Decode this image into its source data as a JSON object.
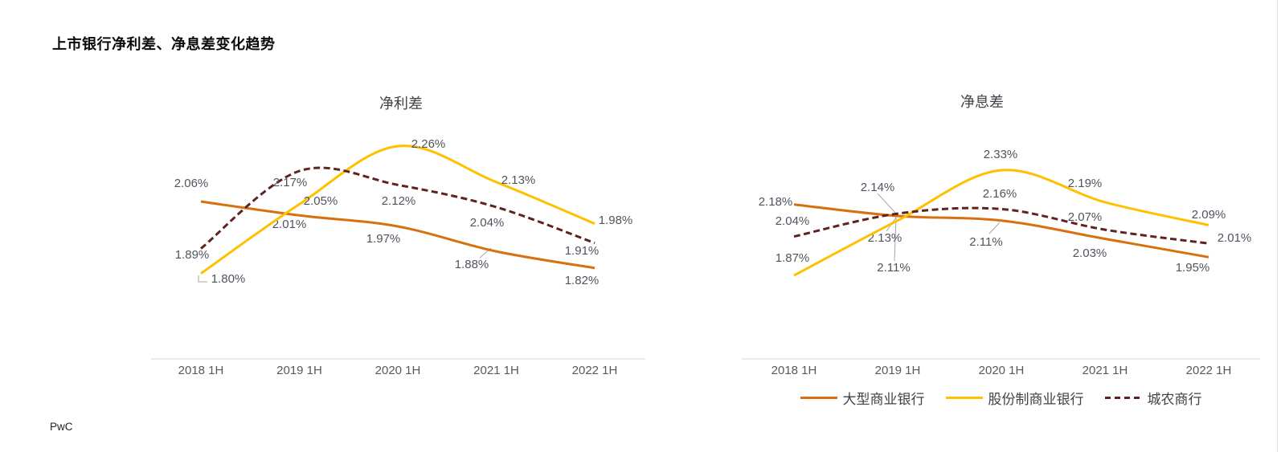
{
  "page": {
    "title": "上市银行净利差、净息差变化趋势",
    "footer": "PwC"
  },
  "legend": {
    "items": [
      {
        "label": "大型商业银行",
        "color": "#D9700F",
        "dashed": false
      },
      {
        "label": "股份制商业银行",
        "color": "#FFC000",
        "dashed": false
      },
      {
        "label": "城农商行",
        "color": "#5F2221",
        "dashed": true
      }
    ]
  },
  "chart_data": [
    {
      "type": "line",
      "title": "净利差",
      "categories": [
        "2018 1H",
        "2019 1H",
        "2020 1H",
        "2021 1H",
        "2022 1H"
      ],
      "ylim": [
        1.7,
        2.4
      ],
      "grid": false,
      "legend_position": "none",
      "series": [
        {
          "name": "大型商业银行",
          "color": "#D9700F",
          "style": "solid",
          "values": [
            2.06,
            2.01,
            1.97,
            1.88,
            1.82
          ],
          "labels": [
            "2.06%",
            "2.01%",
            "1.97%",
            "1.88%",
            "1.82%"
          ]
        },
        {
          "name": "股份制商业银行",
          "color": "#FFC000",
          "style": "solid",
          "values": [
            1.8,
            2.05,
            2.26,
            2.13,
            1.98
          ],
          "labels": [
            "1.80%",
            "2.05%",
            "2.26%",
            "2.13%",
            "1.98%"
          ]
        },
        {
          "name": "城农商行",
          "color": "#5F2221",
          "style": "dashed",
          "values": [
            1.89,
            2.17,
            2.12,
            2.04,
            1.91
          ],
          "labels": [
            "1.89%",
            "2.17%",
            "2.12%",
            "2.04%",
            "1.91%"
          ]
        }
      ]
    },
    {
      "type": "line",
      "title": "净息差",
      "categories": [
        "2018 1H",
        "2019 1H",
        "2020 1H",
        "2021 1H",
        "2022 1H"
      ],
      "ylim": [
        1.7,
        2.4
      ],
      "grid": false,
      "legend_position": "bottom",
      "series": [
        {
          "name": "大型商业银行",
          "color": "#D9700F",
          "style": "solid",
          "values": [
            2.18,
            2.13,
            2.11,
            2.03,
            1.95
          ],
          "labels": [
            "2.18%",
            "2.13%",
            "2.11%",
            "2.03%",
            "1.95%"
          ]
        },
        {
          "name": "股份制商业银行",
          "color": "#FFC000",
          "style": "solid",
          "values": [
            1.87,
            2.11,
            2.33,
            2.19,
            2.09
          ],
          "labels": [
            "1.87%",
            "2.11%",
            "2.33%",
            "2.19%",
            "2.09%"
          ]
        },
        {
          "name": "城农商行",
          "color": "#5F2221",
          "style": "dashed",
          "values": [
            2.04,
            2.14,
            2.16,
            2.07,
            2.01
          ],
          "labels": [
            "2.04%",
            "2.14%",
            "2.16%",
            "2.07%",
            "2.01%"
          ]
        }
      ]
    }
  ]
}
